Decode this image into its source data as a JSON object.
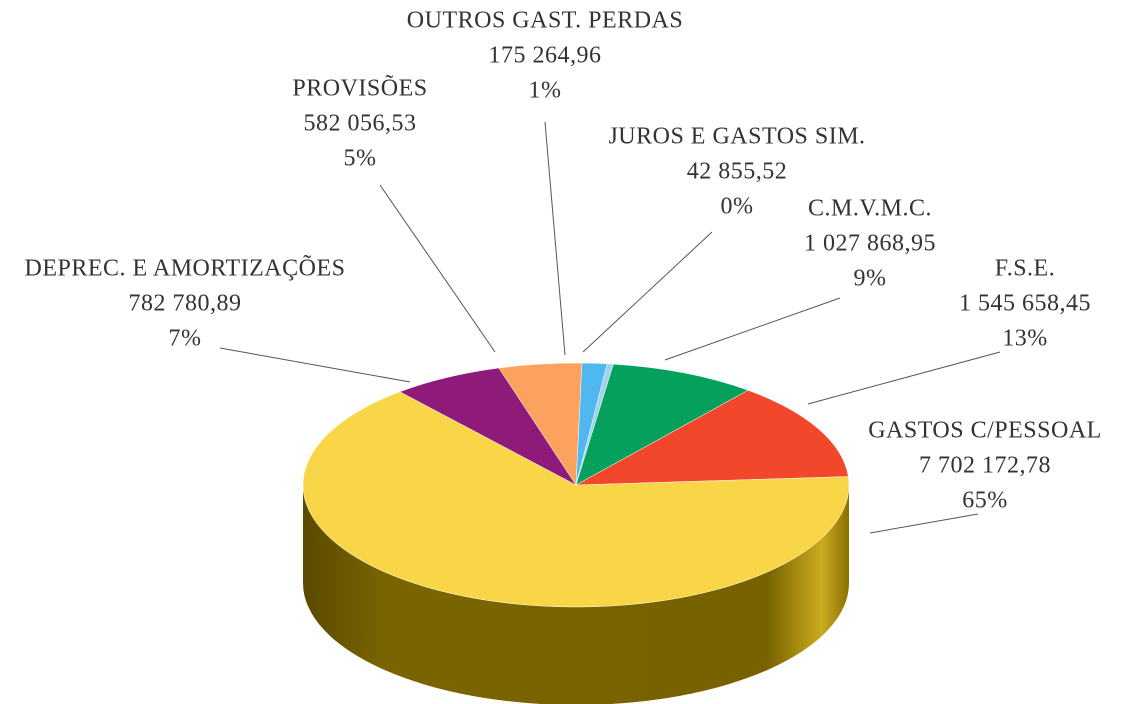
{
  "chart_data": {
    "type": "pie3d",
    "categories": [
      "GASTOS C/PESSOAL",
      "DEPREC. E AMORTIZAÇÕES",
      "PROVISÕES",
      "OUTROS GAST. PERDAS",
      "JUROS E GASTOS SIM.",
      "C.M.V.M.C.",
      "F.S.E."
    ],
    "values": [
      7702172.78,
      782780.89,
      582056.53,
      175264.96,
      42855.52,
      1027868.95,
      1545658.45
    ],
    "value_labels": [
      "7 702 172,78",
      "782 780,89",
      "582 056,53",
      "175 264,96",
      "42 855,52",
      "1 027 868,95",
      "1 545 658,45"
    ],
    "percent_labels": [
      "65%",
      "7%",
      "5%",
      "1%",
      "0%",
      "9%",
      "13%"
    ],
    "colors": [
      "#f9d647",
      "#8e1a7a",
      "#fba35e",
      "#4fb8f0",
      "#9fd3ea",
      "#04a05c",
      "#f2472a"
    ]
  }
}
